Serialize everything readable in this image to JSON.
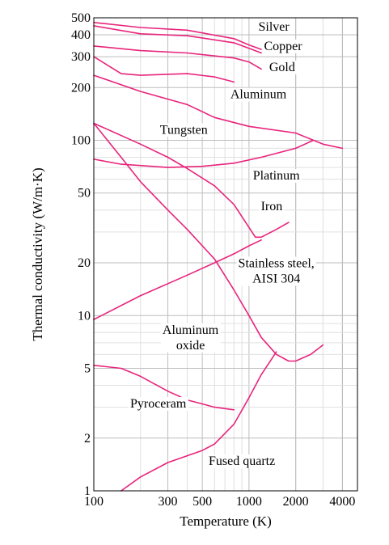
{
  "chart_data": {
    "type": "line",
    "title": "",
    "xlabel": "Temperature (K)",
    "ylabel": "Thermal conductivity (W/m·K)",
    "xscale": "log",
    "yscale": "log",
    "xlim": [
      100,
      5000
    ],
    "ylim": [
      1,
      500
    ],
    "grid": true,
    "curve_color": "#e8247c",
    "x_ticks": [
      {
        "value": 100,
        "label": "100"
      },
      {
        "value": 300,
        "label": "300"
      },
      {
        "value": 500,
        "label": "500"
      },
      {
        "value": 1000,
        "label": "1000"
      },
      {
        "value": 2000,
        "label": "2000"
      },
      {
        "value": 4000,
        "label": "4000"
      }
    ],
    "y_ticks": [
      {
        "value": 1,
        "label": "1"
      },
      {
        "value": 2,
        "label": "2"
      },
      {
        "value": 5,
        "label": "5"
      },
      {
        "value": 10,
        "label": "10"
      },
      {
        "value": 20,
        "label": "20"
      },
      {
        "value": 50,
        "label": "50"
      },
      {
        "value": 100,
        "label": "100"
      },
      {
        "value": 200,
        "label": "200"
      },
      {
        "value": 300,
        "label": "300"
      },
      {
        "value": 400,
        "label": "400"
      },
      {
        "value": 500,
        "label": "500"
      }
    ],
    "series": [
      {
        "id": "silver",
        "name": "Silver",
        "label_lines": [
          "Silver"
        ],
        "label_at": [
          1150,
          445
        ],
        "label_anchor": "start",
        "x": [
          100,
          200,
          400,
          800,
          1000,
          1200
        ],
        "y": [
          470,
          440,
          425,
          380,
          350,
          330
        ]
      },
      {
        "id": "copper",
        "name": "Copper",
        "label_lines": [
          "Copper"
        ],
        "label_at": [
          1250,
          345
        ],
        "label_anchor": "start",
        "x": [
          100,
          200,
          400,
          800,
          1000,
          1200
        ],
        "y": [
          450,
          405,
          395,
          360,
          335,
          315
        ]
      },
      {
        "id": "gold",
        "name": "Gold",
        "label_lines": [
          "Gold"
        ],
        "label_at": [
          1350,
          262
        ],
        "label_anchor": "start",
        "x": [
          100,
          200,
          400,
          800,
          1000,
          1200
        ],
        "y": [
          345,
          325,
          315,
          295,
          280,
          255
        ]
      },
      {
        "id": "aluminum",
        "name": "Aluminum",
        "label_lines": [
          "Aluminum"
        ],
        "label_at": [
          1150,
          183
        ],
        "label_anchor": "middle",
        "x": [
          100,
          150,
          200,
          400,
          600,
          800
        ],
        "y": [
          300,
          240,
          235,
          240,
          230,
          215
        ]
      },
      {
        "id": "tungsten",
        "name": "Tungsten",
        "label_lines": [
          "Tungsten"
        ],
        "label_at": [
          380,
          115
        ],
        "label_anchor": "middle",
        "x": [
          100,
          200,
          400,
          600,
          1000,
          2000,
          3000,
          4000
        ],
        "y": [
          235,
          190,
          160,
          135,
          120,
          110,
          95,
          90
        ]
      },
      {
        "id": "platinum",
        "name": "Platinum",
        "label_lines": [
          "Platinum"
        ],
        "label_at": [
          1500,
          63
        ],
        "label_anchor": "middle",
        "x": [
          100,
          150,
          300,
          500,
          800,
          1200,
          2000,
          2600
        ],
        "y": [
          78,
          73,
          70,
          71,
          74,
          80,
          90,
          100
        ]
      },
      {
        "id": "iron",
        "name": "Iron",
        "label_lines": [
          "Iron"
        ],
        "label_at": [
          1400,
          42
        ],
        "label_anchor": "middle",
        "x": [
          100,
          200,
          300,
          400,
          600,
          800,
          1100,
          1200,
          1500,
          1800
        ],
        "y": [
          125,
          95,
          80,
          69,
          55,
          43,
          28,
          28,
          31,
          34
        ]
      },
      {
        "id": "stainless",
        "name": "Stainless steel, AISI 304",
        "label_lines": [
          "Stainless steel,",
          "AISI 304"
        ],
        "label_at": [
          1500,
          18
        ],
        "label_anchor": "middle",
        "x": [
          100,
          200,
          400,
          600,
          800,
          1000,
          1200
        ],
        "y": [
          9.5,
          13,
          17,
          20,
          22.5,
          25,
          27
        ]
      },
      {
        "id": "al_oxide",
        "name": "Aluminum oxide",
        "label_lines": [
          "Aluminum",
          "oxide"
        ],
        "label_at": [
          420,
          7.5
        ],
        "label_anchor": "middle",
        "x": [
          100,
          150,
          200,
          300,
          400,
          600,
          800,
          1000,
          1200,
          1500,
          1800,
          2000,
          2500,
          3000
        ],
        "y": [
          125,
          80,
          58,
          40,
          31,
          21,
          14,
          10,
          7.5,
          6,
          5.5,
          5.5,
          6,
          6.8
        ]
      },
      {
        "id": "pyroceram",
        "name": "Pyroceram",
        "label_lines": [
          "Pyroceram"
        ],
        "label_at": [
          260,
          3.15
        ],
        "label_anchor": "middle",
        "x": [
          100,
          150,
          200,
          300,
          400,
          600,
          800
        ],
        "y": [
          5.2,
          5,
          4.5,
          3.7,
          3.3,
          3.0,
          2.9
        ]
      },
      {
        "id": "fused_quartz",
        "name": "Fused quartz",
        "label_lines": [
          "Fused quartz"
        ],
        "label_at": [
          900,
          1.48
        ],
        "label_anchor": "middle",
        "x": [
          150,
          200,
          300,
          500,
          600,
          800,
          1000,
          1200,
          1500
        ],
        "y": [
          1,
          1.2,
          1.45,
          1.7,
          1.85,
          2.4,
          3.4,
          4.6,
          6.2
        ]
      }
    ]
  }
}
